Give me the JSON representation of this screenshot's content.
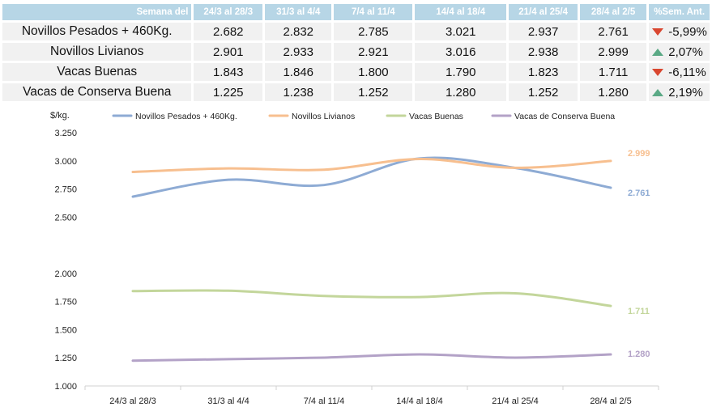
{
  "table": {
    "header_label": "Semana del",
    "weeks": [
      "24/3 al 28/3",
      "31/3 al 4/4",
      "7/4 al 11/4",
      "14/4 al 18/4",
      "21/4 al 25/4",
      "28/4 al 2/5"
    ],
    "change_header": "%Sem. Ant.",
    "rows": [
      {
        "name": "Novillos Pesados + 460Kg.",
        "values": [
          "2.682",
          "2.832",
          "2.785",
          "3.021",
          "2.937",
          "2.761"
        ],
        "change": "-5,99%",
        "direction": "down"
      },
      {
        "name": "Novillos Livianos",
        "values": [
          "2.901",
          "2.933",
          "2.921",
          "3.016",
          "2.938",
          "2.999"
        ],
        "change": "2,07%",
        "direction": "up"
      },
      {
        "name": "Vacas Buenas",
        "values": [
          "1.843",
          "1.846",
          "1.800",
          "1.790",
          "1.823",
          "1.711"
        ],
        "change": "-6,11%",
        "direction": "down"
      },
      {
        "name": "Vacas de Conserva Buena",
        "values": [
          "1.225",
          "1.238",
          "1.252",
          "1.280",
          "1.252",
          "1.280"
        ],
        "change": "2,19%",
        "direction": "up"
      }
    ]
  },
  "chart_data": {
    "type": "line",
    "ylabel": "$/kg.",
    "categories": [
      "24/3 al 28/3",
      "31/3 al 4/4",
      "7/4 al 11/4",
      "14/4 al 18/4",
      "21/4 al 25/4",
      "28/4 al 2/5"
    ],
    "ylim": [
      1000,
      3250
    ],
    "yticks": [
      {
        "value": 1000,
        "label": "1.000"
      },
      {
        "value": 1250,
        "label": "1.250"
      },
      {
        "value": 1500,
        "label": "1.500"
      },
      {
        "value": 1750,
        "label": "1.750"
      },
      {
        "value": 2000,
        "label": "2.000"
      },
      {
        "value": 2500,
        "label": "2.500"
      },
      {
        "value": 2750,
        "label": "2.750"
      },
      {
        "value": 3000,
        "label": "3.000"
      },
      {
        "value": 3250,
        "label": "3.250"
      }
    ],
    "grid": false,
    "legend": "top",
    "series": [
      {
        "name": "Novillos Pesados + 460Kg.",
        "color": "#8eabd4",
        "values": [
          2682,
          2832,
          2785,
          3021,
          2937,
          2761
        ],
        "end_label": "2.761"
      },
      {
        "name": "Novillos Livianos",
        "color": "#f7bf8f",
        "values": [
          2901,
          2933,
          2921,
          3016,
          2938,
          2999
        ],
        "end_label": "2.999"
      },
      {
        "name": "Vacas Buenas",
        "color": "#c3d69b",
        "values": [
          1843,
          1846,
          1800,
          1790,
          1823,
          1711
        ],
        "end_label": "1.711"
      },
      {
        "name": "Vacas de Conserva Buena",
        "color": "#b3a2c7",
        "values": [
          1225,
          1238,
          1252,
          1280,
          1252,
          1280
        ],
        "end_label": "1.280"
      }
    ]
  }
}
